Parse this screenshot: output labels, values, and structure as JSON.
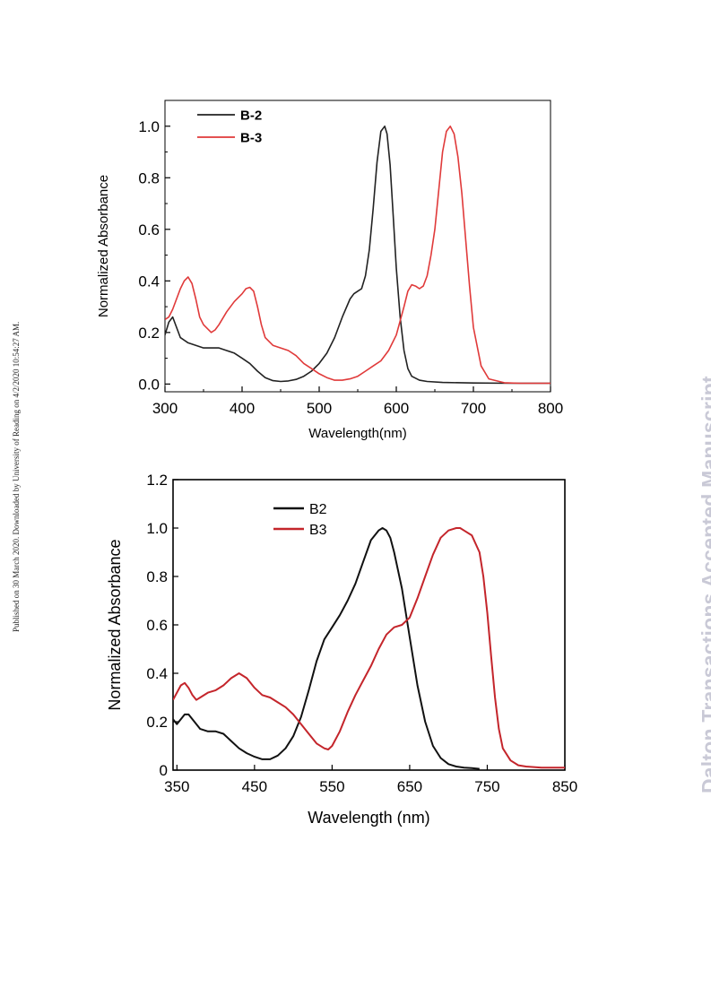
{
  "page": {
    "stamp": "Published on 30 March 2020. Downloaded by University of Reading on 4/2/2020 10:54:27 AM.",
    "journal": "Dalton Transactions Accepted Manuscript"
  },
  "chart_data": [
    {
      "type": "line",
      "xlabel": "Wavelength(nm)",
      "ylabel": "Normalized Absorbance",
      "xlim": [
        300,
        800
      ],
      "ylim": [
        -0.03,
        1.1
      ],
      "xticks": [
        "300",
        "400",
        "500",
        "600",
        "700",
        "800"
      ],
      "yticks": [
        "0.0",
        "0.2",
        "0.4",
        "0.6",
        "0.8",
        "1.0"
      ],
      "legend_position": "top-left",
      "series": [
        {
          "name": "B-2",
          "color": "#222222",
          "x": [
            300,
            305,
            310,
            315,
            320,
            330,
            340,
            350,
            360,
            370,
            380,
            390,
            400,
            410,
            420,
            430,
            440,
            450,
            460,
            470,
            480,
            490,
            500,
            510,
            520,
            530,
            540,
            545,
            550,
            555,
            560,
            565,
            570,
            575,
            580,
            585,
            588,
            592,
            596,
            600,
            605,
            610,
            615,
            620,
            630,
            640,
            660,
            700,
            750,
            800
          ],
          "y": [
            0.19,
            0.24,
            0.26,
            0.22,
            0.18,
            0.16,
            0.15,
            0.14,
            0.14,
            0.14,
            0.13,
            0.12,
            0.1,
            0.08,
            0.05,
            0.025,
            0.013,
            0.01,
            0.012,
            0.018,
            0.03,
            0.05,
            0.08,
            0.12,
            0.18,
            0.26,
            0.33,
            0.35,
            0.36,
            0.37,
            0.42,
            0.52,
            0.68,
            0.86,
            0.98,
            1.0,
            0.97,
            0.85,
            0.65,
            0.45,
            0.26,
            0.13,
            0.06,
            0.03,
            0.015,
            0.01,
            0.006,
            0.004,
            0.003,
            0.003
          ]
        },
        {
          "name": "B-3",
          "color": "#e03a3a",
          "x": [
            300,
            305,
            310,
            315,
            320,
            325,
            330,
            335,
            340,
            345,
            350,
            360,
            365,
            370,
            380,
            390,
            400,
            405,
            410,
            415,
            420,
            425,
            430,
            440,
            450,
            460,
            470,
            480,
            490,
            500,
            510,
            520,
            530,
            540,
            550,
            560,
            570,
            580,
            590,
            600,
            610,
            615,
            620,
            625,
            630,
            635,
            640,
            645,
            650,
            655,
            660,
            665,
            670,
            675,
            680,
            685,
            690,
            695,
            700,
            710,
            720,
            740,
            760,
            800
          ],
          "y": [
            0.25,
            0.26,
            0.29,
            0.33,
            0.37,
            0.4,
            0.415,
            0.39,
            0.33,
            0.26,
            0.23,
            0.2,
            0.21,
            0.23,
            0.28,
            0.32,
            0.35,
            0.37,
            0.375,
            0.36,
            0.3,
            0.23,
            0.18,
            0.15,
            0.14,
            0.13,
            0.11,
            0.08,
            0.06,
            0.04,
            0.025,
            0.015,
            0.015,
            0.02,
            0.03,
            0.05,
            0.07,
            0.09,
            0.13,
            0.19,
            0.3,
            0.36,
            0.385,
            0.38,
            0.37,
            0.38,
            0.42,
            0.5,
            0.6,
            0.75,
            0.9,
            0.98,
            1.0,
            0.97,
            0.88,
            0.74,
            0.56,
            0.38,
            0.22,
            0.07,
            0.02,
            0.005,
            0.003,
            0.003
          ]
        }
      ]
    },
    {
      "type": "line",
      "xlabel": "Wavelength (nm)",
      "ylabel": "Normalized Absorbance",
      "xlim": [
        345,
        850
      ],
      "ylim": [
        0,
        1.2
      ],
      "xticks": [
        "350",
        "450",
        "550",
        "650",
        "750",
        "850"
      ],
      "yticks": [
        "0",
        "0.2",
        "0.4",
        "0.6",
        "0.8",
        "1.0",
        "1.2"
      ],
      "legend_position": "top-center",
      "series": [
        {
          "name": "B2",
          "color": "#111111",
          "x": [
            345,
            350,
            355,
            360,
            365,
            370,
            375,
            380,
            390,
            400,
            410,
            420,
            430,
            440,
            450,
            460,
            470,
            480,
            490,
            500,
            510,
            520,
            530,
            540,
            550,
            560,
            570,
            580,
            590,
            600,
            610,
            615,
            620,
            625,
            630,
            640,
            650,
            660,
            670,
            680,
            690,
            700,
            710,
            720,
            730,
            740
          ],
          "y": [
            0.21,
            0.19,
            0.21,
            0.23,
            0.23,
            0.21,
            0.19,
            0.17,
            0.16,
            0.16,
            0.15,
            0.12,
            0.09,
            0.07,
            0.055,
            0.045,
            0.045,
            0.06,
            0.09,
            0.14,
            0.22,
            0.33,
            0.45,
            0.54,
            0.59,
            0.64,
            0.7,
            0.77,
            0.86,
            0.95,
            0.99,
            1.0,
            0.99,
            0.96,
            0.9,
            0.75,
            0.55,
            0.35,
            0.2,
            0.1,
            0.05,
            0.025,
            0.015,
            0.01,
            0.008,
            0.005
          ]
        },
        {
          "name": "B3",
          "color": "#c4252b",
          "x": [
            345,
            350,
            355,
            360,
            365,
            370,
            375,
            380,
            390,
            400,
            410,
            420,
            430,
            440,
            450,
            460,
            470,
            480,
            490,
            500,
            510,
            520,
            530,
            540,
            545,
            550,
            560,
            570,
            580,
            590,
            600,
            610,
            620,
            630,
            640,
            650,
            660,
            670,
            680,
            690,
            700,
            710,
            715,
            720,
            730,
            740,
            745,
            750,
            755,
            760,
            765,
            770,
            780,
            790,
            800,
            820,
            850
          ],
          "y": [
            0.29,
            0.32,
            0.35,
            0.36,
            0.34,
            0.31,
            0.29,
            0.3,
            0.32,
            0.33,
            0.35,
            0.38,
            0.4,
            0.38,
            0.34,
            0.31,
            0.3,
            0.28,
            0.26,
            0.23,
            0.19,
            0.15,
            0.11,
            0.09,
            0.085,
            0.1,
            0.16,
            0.24,
            0.31,
            0.37,
            0.43,
            0.5,
            0.56,
            0.59,
            0.6,
            0.63,
            0.71,
            0.8,
            0.89,
            0.96,
            0.99,
            1.0,
            1.0,
            0.99,
            0.97,
            0.9,
            0.8,
            0.65,
            0.47,
            0.3,
            0.17,
            0.09,
            0.04,
            0.02,
            0.015,
            0.01,
            0.01
          ]
        }
      ]
    }
  ]
}
